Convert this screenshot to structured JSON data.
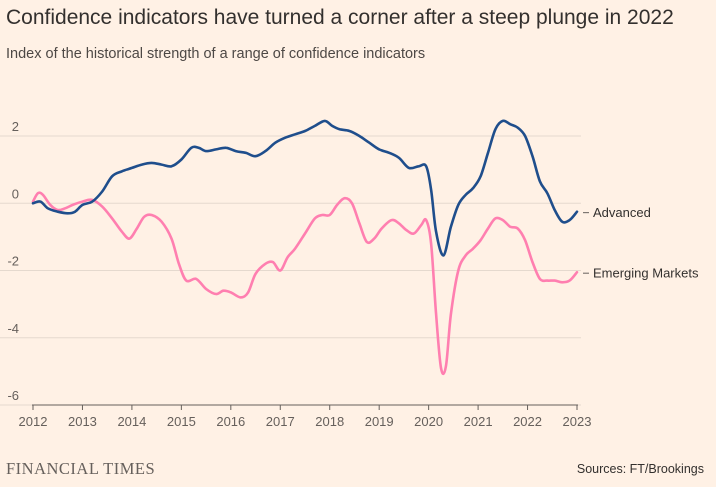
{
  "title": "Confidence indicators have turned a corner after a steep plunge in 2022",
  "subtitle": "Index of the historical strength of a range of confidence indicators",
  "footer": {
    "logo": "FINANCIAL TIMES",
    "source": "Sources: FT/Brookings"
  },
  "chart_data": {
    "type": "line",
    "title": "Confidence indicators have turned a corner after a steep plunge in 2022",
    "xlabel": "",
    "ylabel": "",
    "xlim": [
      2012,
      2023
    ],
    "ylim": [
      -6,
      3
    ],
    "yticks": [
      2,
      0,
      -2,
      -4,
      -6
    ],
    "ytick_labels": [
      "2",
      "0",
      "-2",
      "-4",
      "-6"
    ],
    "xticks": [
      2012,
      2013,
      2014,
      2015,
      2016,
      2017,
      2018,
      2019,
      2020,
      2021,
      2022,
      2023
    ],
    "xtick_labels": [
      "2012",
      "2013",
      "2014",
      "2015",
      "2016",
      "2017",
      "2018",
      "2019",
      "2020",
      "2021",
      "2022",
      "2023"
    ],
    "grid": true,
    "legend": "right, labels at line ends",
    "series": [
      {
        "name": "Advanced",
        "color": "#1f4e8c",
        "points": [
          [
            2012.0,
            0.0
          ],
          [
            2012.15,
            0.05
          ],
          [
            2012.3,
            -0.15
          ],
          [
            2012.5,
            -0.25
          ],
          [
            2012.7,
            -0.3
          ],
          [
            2012.85,
            -0.25
          ],
          [
            2013.0,
            -0.05
          ],
          [
            2013.2,
            0.05
          ],
          [
            2013.4,
            0.35
          ],
          [
            2013.6,
            0.8
          ],
          [
            2013.8,
            0.95
          ],
          [
            2014.0,
            1.05
          ],
          [
            2014.2,
            1.15
          ],
          [
            2014.4,
            1.2
          ],
          [
            2014.6,
            1.15
          ],
          [
            2014.8,
            1.1
          ],
          [
            2015.0,
            1.3
          ],
          [
            2015.2,
            1.65
          ],
          [
            2015.35,
            1.65
          ],
          [
            2015.5,
            1.55
          ],
          [
            2015.7,
            1.6
          ],
          [
            2015.9,
            1.65
          ],
          [
            2016.1,
            1.55
          ],
          [
            2016.3,
            1.5
          ],
          [
            2016.5,
            1.4
          ],
          [
            2016.7,
            1.55
          ],
          [
            2016.9,
            1.8
          ],
          [
            2017.1,
            1.95
          ],
          [
            2017.3,
            2.05
          ],
          [
            2017.5,
            2.15
          ],
          [
            2017.7,
            2.3
          ],
          [
            2017.9,
            2.45
          ],
          [
            2018.05,
            2.3
          ],
          [
            2018.2,
            2.2
          ],
          [
            2018.4,
            2.15
          ],
          [
            2018.6,
            2.0
          ],
          [
            2018.8,
            1.8
          ],
          [
            2019.0,
            1.6
          ],
          [
            2019.2,
            1.5
          ],
          [
            2019.4,
            1.35
          ],
          [
            2019.6,
            1.05
          ],
          [
            2019.8,
            1.1
          ],
          [
            2019.95,
            1.1
          ],
          [
            2020.05,
            0.4
          ],
          [
            2020.15,
            -0.85
          ],
          [
            2020.3,
            -1.55
          ],
          [
            2020.45,
            -0.7
          ],
          [
            2020.6,
            -0.05
          ],
          [
            2020.75,
            0.25
          ],
          [
            2020.9,
            0.45
          ],
          [
            2021.05,
            0.8
          ],
          [
            2021.2,
            1.5
          ],
          [
            2021.35,
            2.2
          ],
          [
            2021.5,
            2.45
          ],
          [
            2021.65,
            2.35
          ],
          [
            2021.8,
            2.25
          ],
          [
            2021.95,
            2.0
          ],
          [
            2022.1,
            1.4
          ],
          [
            2022.25,
            0.65
          ],
          [
            2022.4,
            0.3
          ],
          [
            2022.55,
            -0.2
          ],
          [
            2022.7,
            -0.55
          ],
          [
            2022.85,
            -0.5
          ],
          [
            2023.0,
            -0.25
          ]
        ]
      },
      {
        "name": "Emerging Markets",
        "color": "#ff7fb0",
        "points": [
          [
            2012.0,
            0.05
          ],
          [
            2012.1,
            0.3
          ],
          [
            2012.2,
            0.25
          ],
          [
            2012.35,
            -0.05
          ],
          [
            2012.5,
            -0.2
          ],
          [
            2012.65,
            -0.15
          ],
          [
            2012.8,
            -0.05
          ],
          [
            2013.0,
            0.05
          ],
          [
            2013.2,
            0.1
          ],
          [
            2013.4,
            -0.1
          ],
          [
            2013.6,
            -0.45
          ],
          [
            2013.8,
            -0.85
          ],
          [
            2013.95,
            -1.05
          ],
          [
            2014.1,
            -0.75
          ],
          [
            2014.25,
            -0.4
          ],
          [
            2014.4,
            -0.35
          ],
          [
            2014.6,
            -0.55
          ],
          [
            2014.8,
            -1.05
          ],
          [
            2014.95,
            -1.8
          ],
          [
            2015.1,
            -2.3
          ],
          [
            2015.3,
            -2.25
          ],
          [
            2015.5,
            -2.55
          ],
          [
            2015.7,
            -2.7
          ],
          [
            2015.85,
            -2.6
          ],
          [
            2016.0,
            -2.65
          ],
          [
            2016.2,
            -2.8
          ],
          [
            2016.35,
            -2.65
          ],
          [
            2016.5,
            -2.1
          ],
          [
            2016.7,
            -1.8
          ],
          [
            2016.85,
            -1.75
          ],
          [
            2017.0,
            -2.0
          ],
          [
            2017.15,
            -1.6
          ],
          [
            2017.3,
            -1.35
          ],
          [
            2017.5,
            -0.9
          ],
          [
            2017.7,
            -0.45
          ],
          [
            2017.85,
            -0.35
          ],
          [
            2018.0,
            -0.35
          ],
          [
            2018.15,
            -0.05
          ],
          [
            2018.3,
            0.15
          ],
          [
            2018.45,
            0.0
          ],
          [
            2018.6,
            -0.6
          ],
          [
            2018.75,
            -1.15
          ],
          [
            2018.9,
            -1.05
          ],
          [
            2019.05,
            -0.75
          ],
          [
            2019.25,
            -0.5
          ],
          [
            2019.4,
            -0.6
          ],
          [
            2019.55,
            -0.8
          ],
          [
            2019.7,
            -0.9
          ],
          [
            2019.85,
            -0.65
          ],
          [
            2019.95,
            -0.5
          ],
          [
            2020.05,
            -1.2
          ],
          [
            2020.15,
            -3.3
          ],
          [
            2020.25,
            -4.9
          ],
          [
            2020.35,
            -4.85
          ],
          [
            2020.45,
            -3.3
          ],
          [
            2020.6,
            -2.0
          ],
          [
            2020.75,
            -1.55
          ],
          [
            2020.9,
            -1.35
          ],
          [
            2021.05,
            -1.1
          ],
          [
            2021.2,
            -0.75
          ],
          [
            2021.35,
            -0.45
          ],
          [
            2021.5,
            -0.5
          ],
          [
            2021.65,
            -0.7
          ],
          [
            2021.8,
            -0.75
          ],
          [
            2021.95,
            -1.1
          ],
          [
            2022.1,
            -1.75
          ],
          [
            2022.25,
            -2.25
          ],
          [
            2022.4,
            -2.3
          ],
          [
            2022.55,
            -2.3
          ],
          [
            2022.7,
            -2.35
          ],
          [
            2022.85,
            -2.3
          ],
          [
            2023.0,
            -2.05
          ]
        ]
      }
    ]
  }
}
